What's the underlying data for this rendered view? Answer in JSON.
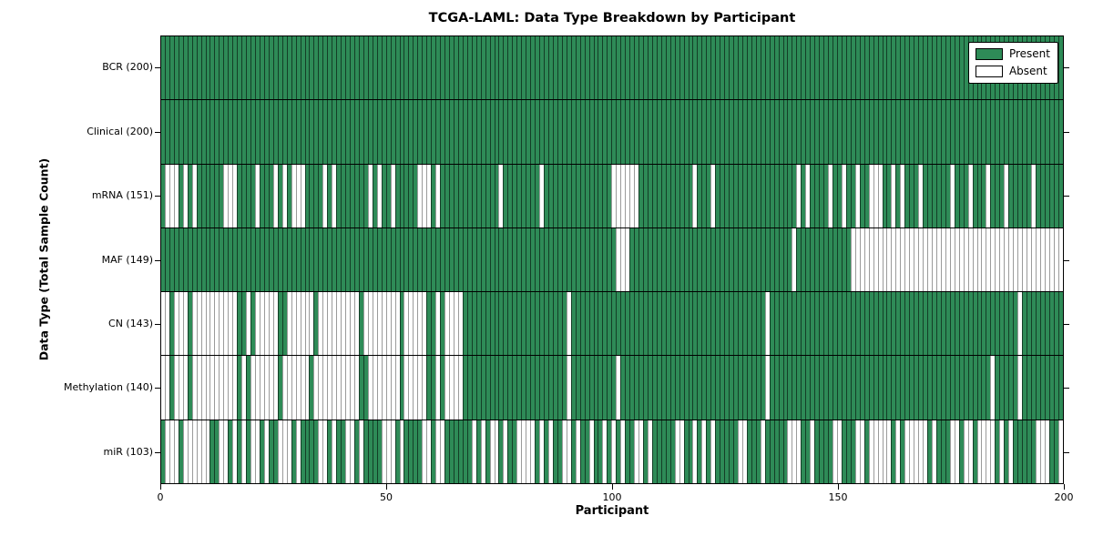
{
  "figure": {
    "title": "TCGA-LAML: Data Type Breakdown by Participant",
    "x_axis_label": "Participant",
    "y_axis_label": "Data Type (Total Sample Count)"
  },
  "legend": {
    "position": "upper-right",
    "items": [
      {
        "label": "Present",
        "color": "#2e8b57"
      },
      {
        "label": "Absent",
        "color": "#ffffff"
      }
    ]
  },
  "colors": {
    "present": "#2e8b57",
    "absent": "#ffffff",
    "row_separator": "#000000",
    "absent_edge": "#9b9b9b"
  },
  "chart_data": {
    "type": "heatmap",
    "n_participants": 200,
    "x": {
      "label": "Participant",
      "ticks": [
        0,
        50,
        100,
        150,
        200
      ],
      "range": [
        0,
        200
      ]
    },
    "states": [
      "present",
      "absent"
    ],
    "rows": [
      {
        "name": "BCR",
        "label": "BCR (200)",
        "present_count": 200,
        "absent_ranges": []
      },
      {
        "name": "Clinical",
        "label": "Clinical (200)",
        "present_count": 200,
        "absent_ranges": []
      },
      {
        "name": "mRNA",
        "label": "mRNA (151)",
        "present_count": 151,
        "absent_ranges": [
          [
            1,
            3
          ],
          [
            5,
            5
          ],
          [
            7,
            7
          ],
          [
            14,
            16
          ],
          [
            21,
            21
          ],
          [
            25,
            25
          ],
          [
            27,
            27
          ],
          [
            29,
            31
          ],
          [
            36,
            36
          ],
          [
            38,
            38
          ],
          [
            46,
            46
          ],
          [
            48,
            48
          ],
          [
            51,
            51
          ],
          [
            57,
            59
          ],
          [
            61,
            61
          ],
          [
            75,
            75
          ],
          [
            84,
            84
          ],
          [
            100,
            105
          ],
          [
            118,
            118
          ],
          [
            122,
            122
          ],
          [
            141,
            141
          ],
          [
            143,
            143
          ],
          [
            148,
            148
          ],
          [
            151,
            151
          ],
          [
            154,
            154
          ],
          [
            157,
            159
          ],
          [
            162,
            162
          ],
          [
            164,
            164
          ],
          [
            168,
            168
          ],
          [
            175,
            175
          ],
          [
            179,
            179
          ],
          [
            183,
            183
          ],
          [
            187,
            187
          ],
          [
            193,
            193
          ]
        ]
      },
      {
        "name": "MAF",
        "label": "MAF (149)",
        "present_count": 149,
        "absent_ranges": [
          [
            101,
            103
          ],
          [
            140,
            140
          ],
          [
            153,
            199
          ]
        ]
      },
      {
        "name": "CN",
        "label": "CN (143)",
        "present_count": 143,
        "absent_ranges": [
          [
            0,
            1
          ],
          [
            3,
            5
          ],
          [
            7,
            16
          ],
          [
            19,
            19
          ],
          [
            21,
            25
          ],
          [
            28,
            33
          ],
          [
            35,
            43
          ],
          [
            45,
            52
          ],
          [
            54,
            58
          ],
          [
            61,
            61
          ],
          [
            63,
            66
          ],
          [
            90,
            90
          ],
          [
            134,
            134
          ],
          [
            190,
            190
          ]
        ]
      },
      {
        "name": "Methylation",
        "label": "Methylation (140)",
        "present_count": 140,
        "absent_ranges": [
          [
            0,
            1
          ],
          [
            3,
            5
          ],
          [
            7,
            16
          ],
          [
            18,
            18
          ],
          [
            20,
            25
          ],
          [
            27,
            32
          ],
          [
            34,
            43
          ],
          [
            46,
            52
          ],
          [
            54,
            58
          ],
          [
            61,
            61
          ],
          [
            63,
            66
          ],
          [
            90,
            90
          ],
          [
            101,
            101
          ],
          [
            134,
            134
          ],
          [
            184,
            184
          ],
          [
            190,
            190
          ]
        ]
      },
      {
        "name": "miR",
        "label": "miR (103)",
        "present_count": 103,
        "absent_ranges": [
          [
            1,
            3
          ],
          [
            5,
            10
          ],
          [
            13,
            14
          ],
          [
            16,
            16
          ],
          [
            18,
            18
          ],
          [
            20,
            21
          ],
          [
            23,
            23
          ],
          [
            26,
            28
          ],
          [
            30,
            30
          ],
          [
            35,
            36
          ],
          [
            38,
            38
          ],
          [
            41,
            42
          ],
          [
            44,
            44
          ],
          [
            49,
            51
          ],
          [
            53,
            53
          ],
          [
            58,
            59
          ],
          [
            61,
            62
          ],
          [
            69,
            69
          ],
          [
            71,
            71
          ],
          [
            73,
            74
          ],
          [
            76,
            76
          ],
          [
            79,
            82
          ],
          [
            84,
            84
          ],
          [
            86,
            86
          ],
          [
            89,
            90
          ],
          [
            92,
            92
          ],
          [
            95,
            95
          ],
          [
            98,
            98
          ],
          [
            100,
            100
          ],
          [
            102,
            102
          ],
          [
            105,
            106
          ],
          [
            108,
            108
          ],
          [
            114,
            115
          ],
          [
            118,
            118
          ],
          [
            120,
            120
          ],
          [
            122,
            122
          ],
          [
            128,
            129
          ],
          [
            133,
            133
          ],
          [
            139,
            141
          ],
          [
            144,
            144
          ],
          [
            149,
            150
          ],
          [
            154,
            155
          ],
          [
            157,
            161
          ],
          [
            163,
            163
          ],
          [
            165,
            169
          ],
          [
            171,
            171
          ],
          [
            175,
            176
          ],
          [
            178,
            179
          ],
          [
            181,
            184
          ],
          [
            186,
            186
          ],
          [
            188,
            188
          ],
          [
            194,
            196
          ],
          [
            199,
            199
          ]
        ]
      }
    ]
  }
}
